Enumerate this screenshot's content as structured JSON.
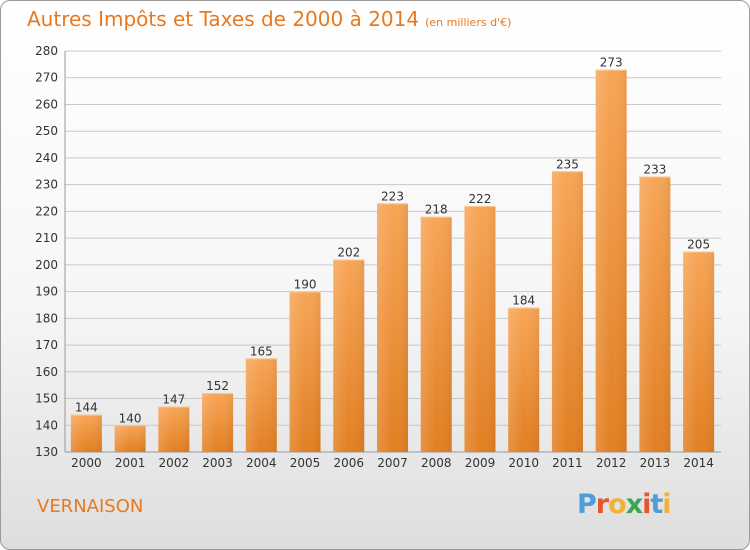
{
  "header": {
    "title": "Autres Impôts et Taxes de 2000 à 2014",
    "unit": "(en milliers d'€)"
  },
  "footer": {
    "city": "VERNAISON",
    "brand": "Proxiti"
  },
  "colors": {
    "accent": "#e8791e",
    "bar_top": "#f7a556",
    "bar_bottom": "#e27f22",
    "grid": "#c8c8c8",
    "logo": [
      "#4f9fd6",
      "#e4572e",
      "#f2b134",
      "#3aa655",
      "#e4572e",
      "#4f9fd6",
      "#f2b134"
    ]
  },
  "chart_data": {
    "type": "bar",
    "categories": [
      "2000",
      "2001",
      "2002",
      "2003",
      "2004",
      "2005",
      "2006",
      "2007",
      "2008",
      "2009",
      "2010",
      "2011",
      "2012",
      "2013",
      "2014"
    ],
    "values": [
      144,
      140,
      147,
      152,
      165,
      190,
      202,
      223,
      218,
      222,
      184,
      235,
      273,
      233,
      205
    ],
    "title": "Autres Impôts et Taxes de 2000 à 2014",
    "ylim": [
      130,
      280
    ],
    "yticks": [
      130,
      140,
      150,
      160,
      170,
      180,
      190,
      200,
      210,
      220,
      230,
      240,
      250,
      260,
      270,
      280
    ],
    "grid": true,
    "legend": "none"
  }
}
